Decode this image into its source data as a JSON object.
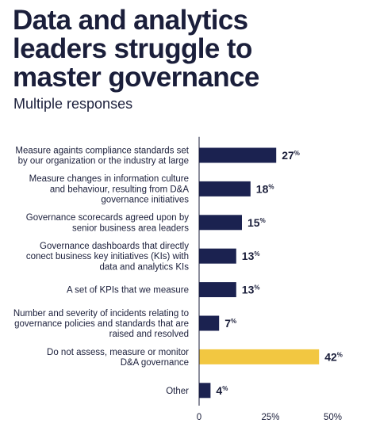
{
  "header": {
    "title_lines": [
      "Data and analytics",
      "leaders struggle to",
      "master governance"
    ],
    "subtitle": "Multiple responses"
  },
  "colors": {
    "bar": "#1b2250",
    "highlight": "#f2c741",
    "axis": "#1b1f3b",
    "text": "#1b1f3b"
  },
  "chart_data": {
    "type": "bar",
    "orientation": "horizontal",
    "title": "Data and analytics leaders struggle to master governance",
    "subtitle": "Multiple responses",
    "categories": [
      [
        "Measure againts compliance standards set",
        "by our organization or the industry at large"
      ],
      [
        "Measure changes in information culture",
        "and behaviour, resulting from D&A",
        "governance initiatives"
      ],
      [
        "Governance scorecards agreed upon by",
        "senior business area leaders"
      ],
      [
        "Governance dashboards that directly",
        "conect business key initiatives (KIs) with",
        "data and analytics KIs"
      ],
      [
        "A set of KPIs that we measure"
      ],
      [
        "Number and severity of incidents relating to",
        "governance policies and standards that are",
        "raised and resolved"
      ],
      [
        "Do not assess, measure or monitor",
        "D&A governance"
      ],
      [
        "Other"
      ]
    ],
    "values": [
      27,
      18,
      15,
      13,
      13,
      7,
      42,
      4
    ],
    "value_labels": [
      "27",
      "18",
      "15",
      "13",
      "13",
      "7",
      "42",
      "4"
    ],
    "value_suffix": "%",
    "highlight_index": 6,
    "xlim": [
      0,
      50
    ],
    "xticks": [
      0,
      25,
      50
    ],
    "xtick_labels": [
      "0",
      "25%",
      "50%"
    ],
    "xlabel": "",
    "ylabel": "",
    "grid": false,
    "legend": "none"
  }
}
